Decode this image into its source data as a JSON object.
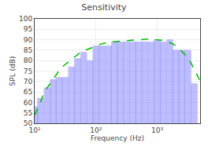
{
  "chart_data": {
    "type": "bar",
    "title": "Sensitivity",
    "xlabel": "Frequency (Hz)",
    "ylabel": "SPL (dB)",
    "log": "x",
    "grid": true,
    "xlim": [
      10,
      5000
    ],
    "ylim": [
      50,
      100
    ],
    "xticks": [
      {
        "value": 10,
        "label": "10¹"
      },
      {
        "value": 100,
        "label": "10²"
      },
      {
        "value": 1000,
        "label": "10³"
      }
    ],
    "yticks": [
      50,
      55,
      60,
      65,
      70,
      75,
      80,
      85,
      90,
      95,
      100
    ],
    "series": [
      {
        "type": "bar",
        "color": "#8888ff",
        "x": [
          10,
          12.5,
          16,
          20,
          25,
          31.5,
          40,
          50,
          63,
          80,
          100,
          125,
          160,
          200,
          250,
          315,
          400,
          500,
          630,
          800,
          1000,
          1250,
          1600,
          2000,
          2500,
          3150,
          4000
        ],
        "values": [
          58,
          62,
          67,
          71,
          72,
          72,
          77,
          81,
          84,
          80,
          87,
          87,
          87,
          89,
          89,
          89,
          89,
          89,
          89,
          89,
          90,
          89,
          90,
          85,
          85,
          85,
          69
        ]
      },
      {
        "type": "line",
        "color": "#00bb00",
        "line_style": "dashed",
        "x": [
          10,
          12,
          14,
          16,
          19,
          22,
          26,
          31,
          38,
          46,
          56,
          68,
          83,
          100,
          122,
          148,
          180,
          220,
          265,
          320,
          390,
          470,
          570,
          690,
          835,
          1010,
          1200,
          1400,
          1600,
          1800,
          2000,
          2200,
          2500,
          2800,
          3200,
          3600,
          4000,
          4500,
          5000
        ],
        "values": [
          54,
          59,
          64,
          67,
          70,
          73,
          76,
          78,
          80,
          82,
          84,
          85,
          86,
          87,
          88,
          88.5,
          89,
          89.2,
          89.4,
          89.5,
          89.6,
          89.8,
          90.1,
          90.3,
          90.2,
          90.0,
          89.8,
          89.2,
          88.5,
          88.0,
          87.0,
          86.0,
          84.5,
          83.0,
          81.0,
          78.5,
          76.0,
          73.0,
          70.0
        ]
      }
    ]
  }
}
